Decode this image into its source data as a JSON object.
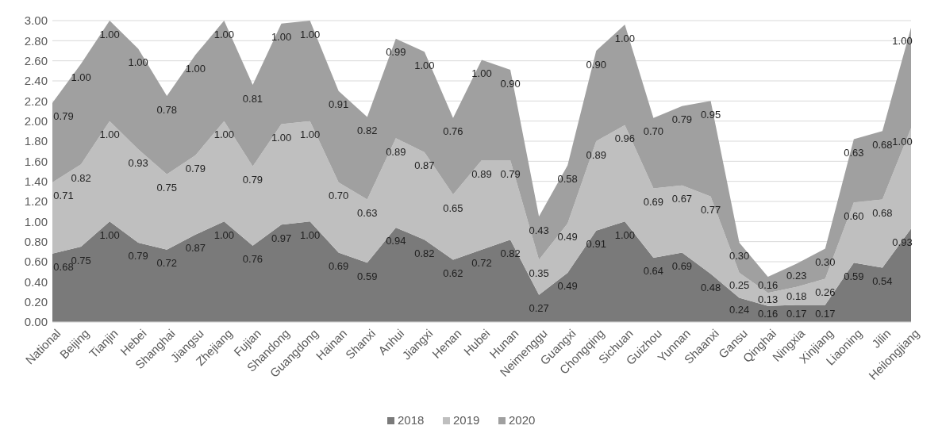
{
  "chart_data": {
    "type": "area",
    "stacked": true,
    "grid": "y",
    "legend": "bottom",
    "categories": [
      "National",
      "Beijing",
      "Tianjin",
      "Hebei",
      "Shanghai",
      "Jiangsu",
      "Zhejiang",
      "Fujian",
      "Shandong",
      "Guangdong",
      "Hainan",
      "Shanxi",
      "Anhui",
      "Jiangxi",
      "Henan",
      "Hubei",
      "Hunan",
      "Neimenggu",
      "Guangxi",
      "Chongqing",
      "Sichuan",
      "Guizhou",
      "Yunnan",
      "Shaanxi",
      "Gansu",
      "Qinghai",
      "Ningxia",
      "Xinjiang",
      "Liaoning",
      "Jilin",
      "Heilongjiang"
    ],
    "ylim": [
      0,
      3
    ],
    "yticks": [
      {
        "value": 0,
        "label": "0.00"
      },
      {
        "value": 0.2,
        "label": "0.20"
      },
      {
        "value": 0.4,
        "label": "0.40"
      },
      {
        "value": 0.6,
        "label": "0.60"
      },
      {
        "value": 0.8,
        "label": "0.80"
      },
      {
        "value": 1,
        "label": "1.00"
      },
      {
        "value": 1.2,
        "label": "1.20"
      },
      {
        "value": 1.4,
        "label": "1.40"
      },
      {
        "value": 1.6,
        "label": "1.60"
      },
      {
        "value": 1.8,
        "label": "1.80"
      },
      {
        "value": 2,
        "label": "2.00"
      },
      {
        "value": 2.2,
        "label": "2.20"
      },
      {
        "value": 2.4,
        "label": "2.40"
      },
      {
        "value": 2.6,
        "label": "2.60"
      },
      {
        "value": 2.8,
        "label": "2.80"
      },
      {
        "value": 3,
        "label": "3.00"
      }
    ],
    "series": [
      {
        "name": "2018",
        "color": "#7a7a7a",
        "values": [
          0.68,
          0.75,
          1.0,
          0.79,
          0.72,
          0.87,
          1.0,
          0.76,
          0.97,
          1.0,
          0.69,
          0.59,
          0.94,
          0.82,
          0.62,
          0.72,
          0.82,
          0.27,
          0.49,
          0.91,
          1.0,
          0.64,
          0.69,
          0.48,
          0.24,
          0.16,
          0.17,
          0.17,
          0.59,
          0.54,
          0.93
        ],
        "value_labels": [
          "0.68",
          "0.75",
          "1.00",
          "0.79",
          "0.72",
          "0.87",
          "1.00",
          "0.76",
          "0.97",
          "1.00",
          "0.69",
          "0.59",
          "0.94",
          "0.82",
          "0.62",
          "0.72",
          "0.82",
          "0.27",
          "0.49",
          "0.91",
          "1.00",
          "0.64",
          "0.69",
          "0.48",
          "0.24",
          "0.16",
          "0.17",
          "0.17",
          "0.59",
          "0.54",
          "0.93"
        ]
      },
      {
        "name": "2019",
        "color": "#bfbfbf",
        "values": [
          0.71,
          0.82,
          1.0,
          0.93,
          0.75,
          0.79,
          1.0,
          0.79,
          1.0,
          1.0,
          0.7,
          0.63,
          0.89,
          0.87,
          0.65,
          0.89,
          0.79,
          0.35,
          0.49,
          0.89,
          0.96,
          0.69,
          0.67,
          0.77,
          0.25,
          0.13,
          0.18,
          0.26,
          0.6,
          0.68,
          1.0
        ],
        "value_labels": [
          "0.71",
          "0.82",
          "1.00",
          "0.93",
          "0.75",
          "0.79",
          "1.00",
          "0.79",
          "1.00",
          "1.00",
          "0.70",
          "0.63",
          "0.89",
          "0.87",
          "0.65",
          "0.89",
          "0.79",
          "0.35",
          "0.49",
          "0.89",
          "0.96",
          "0.69",
          "0.67",
          "0.77",
          "0.25",
          "0.13",
          "0.18",
          "0.26",
          "0.60",
          "0.68",
          "1.00"
        ]
      },
      {
        "name": "2020",
        "color": "#a0a0a0",
        "values": [
          0.79,
          1.0,
          1.0,
          1.0,
          0.78,
          1.0,
          1.0,
          0.81,
          1.0,
          1.0,
          0.91,
          0.82,
          0.99,
          1.0,
          0.76,
          1.0,
          0.9,
          0.43,
          0.58,
          0.9,
          1.0,
          0.7,
          0.79,
          0.95,
          0.3,
          0.16,
          0.23,
          0.3,
          0.63,
          0.68,
          1.0
        ],
        "value_labels": [
          "0.79",
          "1.00",
          "1.00",
          "1.00",
          "0.78",
          "1.00",
          "1.00",
          "0.81",
          "1.00",
          "1.00",
          "0.91",
          "0.82",
          "0.99",
          "1.00",
          "0.76",
          "1.00",
          "0.90",
          "0.43",
          "0.58",
          "0.90",
          "1.00",
          "0.70",
          "0.79",
          "0.95",
          "0.30",
          "0.16",
          "0.23",
          "0.30",
          "0.63",
          "0.68",
          "1.00"
        ]
      }
    ]
  }
}
